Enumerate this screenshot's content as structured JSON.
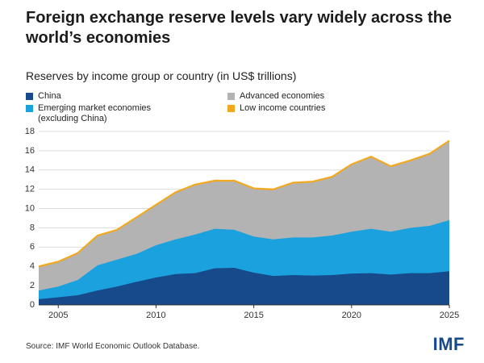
{
  "chart_data": {
    "type": "stacked_area",
    "title": "Foreign exchange reserve levels vary widely across the world’s economies",
    "subtitle": "Reserves by income group or country (in US$ trillions)",
    "source": "Source: IMF World Economic Outlook Database.",
    "logo": "IMF",
    "x": [
      2004,
      2005,
      2006,
      2007,
      2008,
      2009,
      2010,
      2011,
      2012,
      2013,
      2014,
      2015,
      2016,
      2017,
      2018,
      2019,
      2020,
      2021,
      2022,
      2023,
      2024,
      2025
    ],
    "series": [
      {
        "name": "China",
        "color": "#174a8b",
        "values": [
          0.6,
          0.8,
          1.0,
          1.5,
          1.9,
          2.4,
          2.85,
          3.2,
          3.3,
          3.8,
          3.85,
          3.35,
          3.0,
          3.1,
          3.05,
          3.1,
          3.25,
          3.3,
          3.15,
          3.3,
          3.3,
          3.5
        ]
      },
      {
        "name": "Emerging market economies (excluding China)",
        "color": "#1ba1dd",
        "values": [
          0.9,
          1.1,
          1.6,
          2.6,
          2.8,
          2.9,
          3.35,
          3.6,
          4.0,
          4.1,
          3.95,
          3.75,
          3.8,
          3.9,
          3.95,
          4.1,
          4.35,
          4.6,
          4.45,
          4.7,
          4.9,
          5.3
        ]
      },
      {
        "name": "Advanced economies",
        "color": "#b3b3b3",
        "values": [
          2.4,
          2.5,
          2.7,
          3.0,
          3.0,
          3.7,
          4.1,
          4.8,
          5.1,
          4.9,
          5.0,
          4.9,
          5.1,
          5.6,
          5.7,
          6.0,
          6.9,
          7.4,
          6.7,
          6.9,
          7.4,
          8.15
        ]
      },
      {
        "name": "Low income countries",
        "color": "#f2a91e",
        "values": [
          0.1,
          0.1,
          0.1,
          0.1,
          0.1,
          0.1,
          0.1,
          0.1,
          0.1,
          0.1,
          0.1,
          0.1,
          0.1,
          0.1,
          0.1,
          0.1,
          0.1,
          0.1,
          0.1,
          0.1,
          0.1,
          0.1
        ]
      }
    ],
    "xlim": [
      2004,
      2025
    ],
    "xticks": [
      2005,
      2010,
      2015,
      2020,
      2025
    ],
    "ylim": [
      0,
      18
    ],
    "yticks": [
      0,
      2,
      4,
      6,
      8,
      10,
      12,
      14,
      16,
      18
    ],
    "grid": true,
    "legend": "top"
  }
}
